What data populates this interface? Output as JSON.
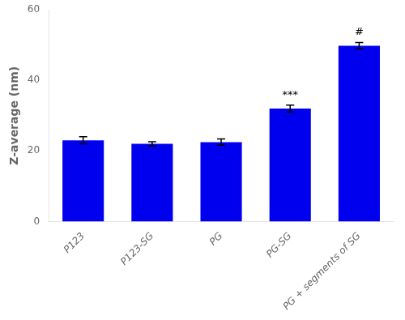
{
  "chart_data": {
    "type": "bar",
    "categories": [
      "P123",
      "P123-SG",
      "PG",
      "PG-SG",
      "PG + segments of SG"
    ],
    "values": [
      23.0,
      22.0,
      22.5,
      32.0,
      49.8
    ],
    "errors": [
      1.0,
      0.6,
      0.9,
      1.0,
      0.9
    ],
    "color": "#0000EE",
    "ylabel": "Z-average (nm)",
    "ylim": [
      0,
      60
    ],
    "yticks": [
      0,
      20,
      40,
      60
    ],
    "grid": false,
    "annotations": [
      {
        "category": "PG-SG",
        "text": "***"
      },
      {
        "category": "PG + segments of SG",
        "text": "#"
      }
    ]
  }
}
